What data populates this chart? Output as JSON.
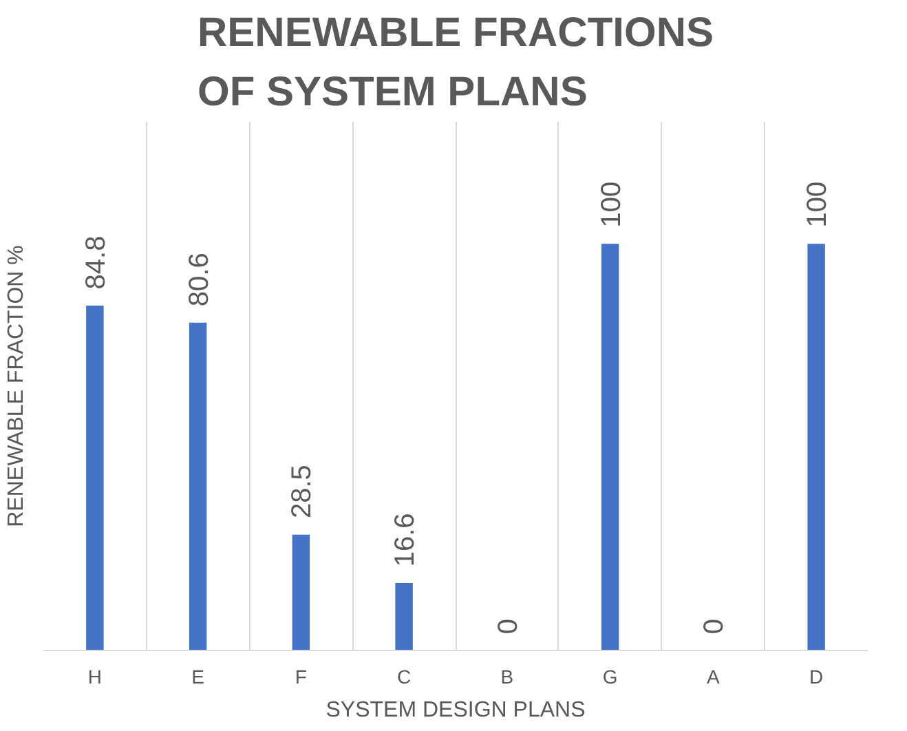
{
  "chart_data": {
    "type": "bar",
    "title": "RENEWABLE FRACTIONS OF SYSTEM PLANS",
    "xlabel": "SYSTEM DESIGN PLANS",
    "ylabel": "RENEWABLE FRACTION %",
    "categories": [
      "H",
      "E",
      "F",
      "C",
      "B",
      "G",
      "A",
      "D"
    ],
    "values": [
      84.8,
      80.6,
      28.5,
      16.6,
      0,
      100,
      0,
      100
    ],
    "color": "#4472c4",
    "data_labels": true,
    "grid": "x"
  }
}
